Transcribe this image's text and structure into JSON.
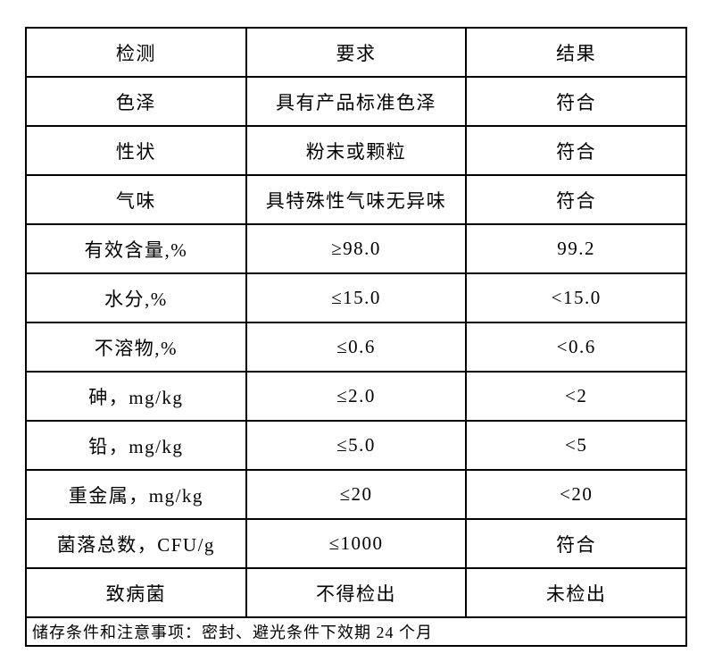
{
  "table": {
    "headers": [
      "检测",
      "要求",
      "结果"
    ],
    "rows": [
      [
        "色泽",
        "具有产品标准色泽",
        "符合"
      ],
      [
        "性状",
        "粉末或颗粒",
        "符合"
      ],
      [
        "气味",
        "具特殊性气味无异味",
        "符合"
      ],
      [
        "有效含量,%",
        "≥98.0",
        "99.2"
      ],
      [
        "水分,%",
        "≤15.0",
        "<15.0"
      ],
      [
        "不溶物,%",
        "≤0.6",
        "<0.6"
      ],
      [
        "砷，mg/kg",
        "≤2.0",
        "<2"
      ],
      [
        "铅，mg/kg",
        "≤5.0",
        "<5"
      ],
      [
        "重金属，mg/kg",
        "≤20",
        "<20"
      ],
      [
        "菌落总数，CFU/g",
        "≤1000",
        "符合"
      ],
      [
        "致病菌",
        "不得检出",
        "未检出"
      ]
    ],
    "footer": "储存条件和注意事项：密封、避光条件下效期 24 个月"
  },
  "colors": {
    "border": "#000000",
    "background": "#ffffff",
    "text": "#000000"
  }
}
